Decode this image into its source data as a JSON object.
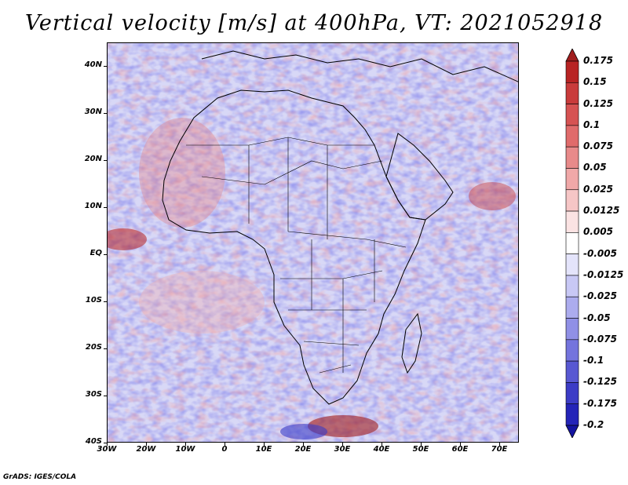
{
  "title": "Vertical velocity [m/s] at 400hPa, VT: 2021052918",
  "map": {
    "lat_labels": [
      "40N",
      "30N",
      "20N",
      "10N",
      "EQ",
      "10S",
      "20S",
      "30S",
      "40S"
    ],
    "lon_labels": [
      "30W",
      "20W",
      "10W",
      "0",
      "10E",
      "20E",
      "30E",
      "40E",
      "50E",
      "60E",
      "70E"
    ],
    "lat_range": [
      -40,
      45
    ],
    "lon_range": [
      -30,
      75
    ]
  },
  "colorbar": {
    "labels": [
      "0.175",
      "0.15",
      "0.125",
      "0.1",
      "0.075",
      "0.05",
      "0.025",
      "0.0125",
      "0.005",
      "-0.005",
      "-0.0125",
      "-0.025",
      "-0.05",
      "-0.075",
      "-0.1",
      "-0.125",
      "-0.175",
      "-0.2"
    ],
    "colors": [
      "#a01d1d",
      "#b82424",
      "#c93b3b",
      "#d65252",
      "#e06b6b",
      "#e88a8a",
      "#f0a8a8",
      "#f6c6c6",
      "#fbe3e3",
      "#ffffff",
      "#e4e4fb",
      "#c8c8f5",
      "#acacee",
      "#9090e6",
      "#7474dd",
      "#5858d2",
      "#3c3cc6",
      "#2424b8",
      "#1414a0"
    ]
  },
  "footer": "GrADS: IGES/COLA"
}
